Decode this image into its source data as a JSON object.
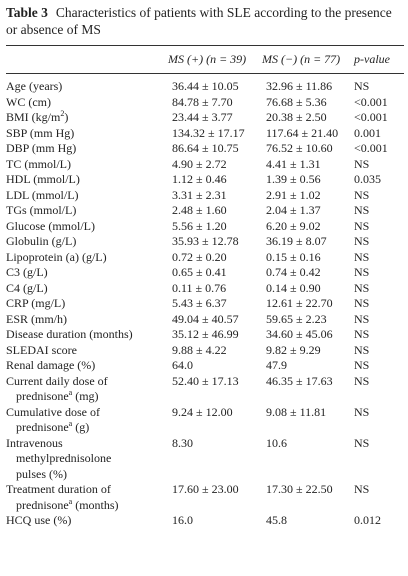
{
  "title": {
    "label": "Table 3",
    "text": "Characteristics of patients with SLE according to the presence or absence of MS"
  },
  "table": {
    "header": [
      "MS (+) (n = 39)",
      "MS (−) (n = 77)",
      "p-value"
    ],
    "rows": [
      [
        {
          "pre": "Age (years)"
        },
        "36.44 ± 10.05",
        "32.96 ± 11.86",
        "NS"
      ],
      [
        {
          "pre": "WC (cm)"
        },
        "84.78 ± 7.70",
        "76.68 ± 5.36",
        "<0.001"
      ],
      [
        {
          "pre": "BMI (kg/m",
          "sup": "2",
          "post": ")"
        },
        "23.44 ± 3.77",
        "20.38 ± 2.50",
        "<0.001"
      ],
      [
        {
          "pre": "SBP (mm Hg)"
        },
        "134.32 ± 17.17",
        "117.64 ± 21.40",
        "0.001"
      ],
      [
        {
          "pre": "DBP (mm Hg)"
        },
        "86.64 ± 10.75",
        "76.52 ± 10.60",
        "<0.001"
      ],
      [
        {
          "pre": "TC (mmol/L)"
        },
        "4.90 ± 2.72",
        "4.41 ± 1.31",
        "NS"
      ],
      [
        {
          "pre": "HDL (mmol/L)"
        },
        "1.12 ± 0.46",
        "1.39 ± 0.56",
        "0.035"
      ],
      [
        {
          "pre": "LDL (mmol/L)"
        },
        "3.31 ± 2.31",
        "2.91 ± 1.02",
        "NS"
      ],
      [
        {
          "pre": "TGs (mmol/L)"
        },
        "2.48 ± 1.60",
        "2.04 ± 1.37",
        "NS"
      ],
      [
        {
          "pre": "Glucose (mmol/L)"
        },
        "5.56 ± 1.20",
        "6.20 ± 9.02",
        "NS"
      ],
      [
        {
          "pre": "Globulin (g/L)"
        },
        "35.93 ± 12.78",
        "36.19 ± 8.07",
        "NS"
      ],
      [
        {
          "pre": "Lipoprotein (a) (g/L)"
        },
        "0.72 ± 0.20",
        "0.15 ± 0.16",
        "NS"
      ],
      [
        {
          "pre": "C3 (g/L)"
        },
        "0.65 ± 0.41",
        "0.74 ± 0.42",
        "NS"
      ],
      [
        {
          "pre": "C4 (g/L)"
        },
        "0.11 ± 0.76",
        "0.14 ± 0.90",
        "NS"
      ],
      [
        {
          "pre": "CRP (mg/L)"
        },
        "5.43 ± 6.37",
        "12.61 ± 22.70",
        "NS"
      ],
      [
        {
          "pre": "ESR (mm/h)"
        },
        "49.04 ± 40.57",
        "59.65 ± 2.23",
        "NS"
      ],
      [
        {
          "pre": "Disease duration (months)"
        },
        "35.12 ± 46.99",
        "34.60 ± 45.06",
        "NS"
      ],
      [
        {
          "pre": "SLEDAI score"
        },
        "9.88 ± 4.22",
        "9.82 ± 9.29",
        "NS"
      ],
      [
        {
          "pre": "Renal damage (%)"
        },
        "64.0",
        "47.9",
        "NS"
      ],
      [
        {
          "pre": "Current daily dose of prednisone",
          "sup": "a",
          "post": " (mg)"
        },
        "52.40 ± 17.13",
        "46.35 ± 17.63",
        "NS"
      ],
      [
        {
          "pre": "Cumulative dose of prednisone",
          "sup": "a",
          "post": " (g)"
        },
        "9.24 ± 12.00",
        "9.08 ± 11.81",
        "NS"
      ],
      [
        {
          "pre": "Intravenous methylprednisolone pulses (%)"
        },
        "8.30",
        "10.6",
        "NS"
      ],
      [
        {
          "pre": "Treatment duration of prednisone",
          "sup": "a",
          "post": " (months)"
        },
        "17.60 ± 23.00",
        "17.30 ± 22.50",
        "NS"
      ],
      [
        {
          "pre": "HCQ use (%)"
        },
        "16.0",
        "45.8",
        "0.012"
      ]
    ]
  }
}
